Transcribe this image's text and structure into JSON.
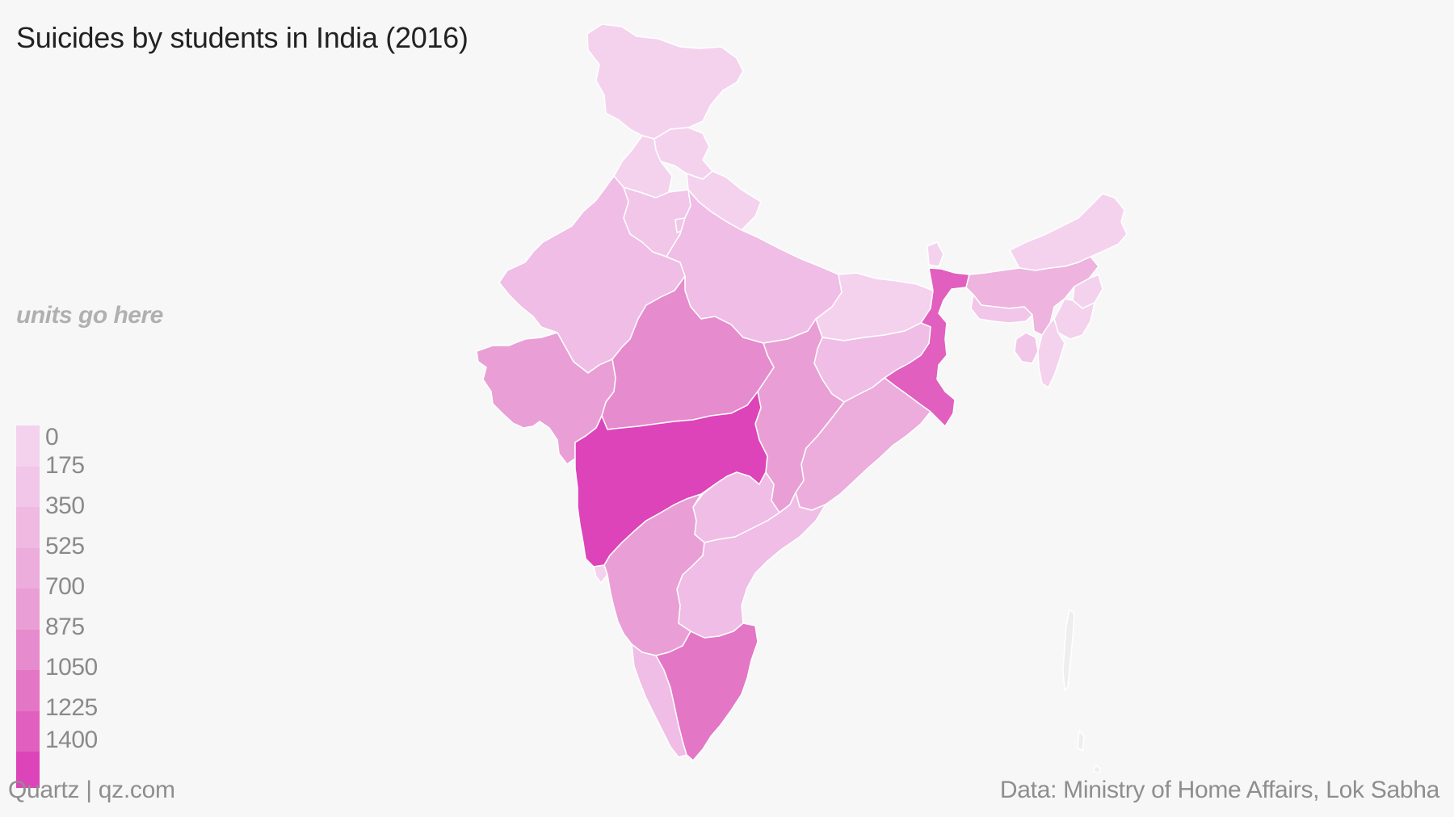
{
  "title": "Suicides by students in India (2016)",
  "units_note": "units go here",
  "footer": {
    "brand": "Quartz | qz.com",
    "source": "Data: Ministry of Home Affairs, Lok Sabha"
  },
  "legend": {
    "labels": [
      "0",
      "175",
      "350",
      "525",
      "700",
      "875",
      "1050",
      "1225",
      "1400"
    ],
    "colors": [
      "#f4d2ee",
      "#f1c6e8",
      "#efb9e2",
      "#ecacdc",
      "#e99fd6",
      "#e68bcd",
      "#e476c6",
      "#e05fbf",
      "#dd44b9"
    ]
  },
  "map": {
    "regions": [
      {
        "name": "jammu-kashmir",
        "color": "#f4d2ee"
      },
      {
        "name": "himachal-pradesh",
        "color": "#f4d2ee"
      },
      {
        "name": "punjab",
        "color": "#f4d2ee"
      },
      {
        "name": "uttarakhand",
        "color": "#f4d2ee"
      },
      {
        "name": "haryana",
        "color": "#f1c6e8"
      },
      {
        "name": "rajasthan",
        "color": "#efbde5"
      },
      {
        "name": "uttar-pradesh",
        "color": "#efbde5"
      },
      {
        "name": "bihar",
        "color": "#f4d2ee"
      },
      {
        "name": "sikkim",
        "color": "#f4d2ee"
      },
      {
        "name": "arunachal-pradesh",
        "color": "#f4d2ee"
      },
      {
        "name": "assam",
        "color": "#eeb3de"
      },
      {
        "name": "meghalaya",
        "color": "#f1c6e8"
      },
      {
        "name": "nagaland",
        "color": "#f4d2ee"
      },
      {
        "name": "manipur",
        "color": "#f4d2ee"
      },
      {
        "name": "mizoram",
        "color": "#f4d2ee"
      },
      {
        "name": "tripura",
        "color": "#f1c6e8"
      },
      {
        "name": "west-bengal",
        "color": "#e05fbf"
      },
      {
        "name": "jharkhand",
        "color": "#efbde5"
      },
      {
        "name": "odisha",
        "color": "#ecacdc"
      },
      {
        "name": "chhattisgarh",
        "color": "#e99fd6"
      },
      {
        "name": "madhya-pradesh",
        "color": "#e68bcd"
      },
      {
        "name": "gujarat",
        "color": "#e99fd6"
      },
      {
        "name": "maharashtra",
        "color": "#dd44b9"
      },
      {
        "name": "telangana",
        "color": "#efbde5"
      },
      {
        "name": "andhra-pradesh",
        "color": "#efbde5"
      },
      {
        "name": "karnataka",
        "color": "#e99fd6"
      },
      {
        "name": "goa",
        "color": "#f4d2ee"
      },
      {
        "name": "kerala",
        "color": "#efbde5"
      },
      {
        "name": "tamil-nadu",
        "color": "#e476c6"
      },
      {
        "name": "delhi",
        "color": "#f1c6e8"
      },
      {
        "name": "andaman-nicobar",
        "color": "#eeeeee"
      }
    ]
  }
}
